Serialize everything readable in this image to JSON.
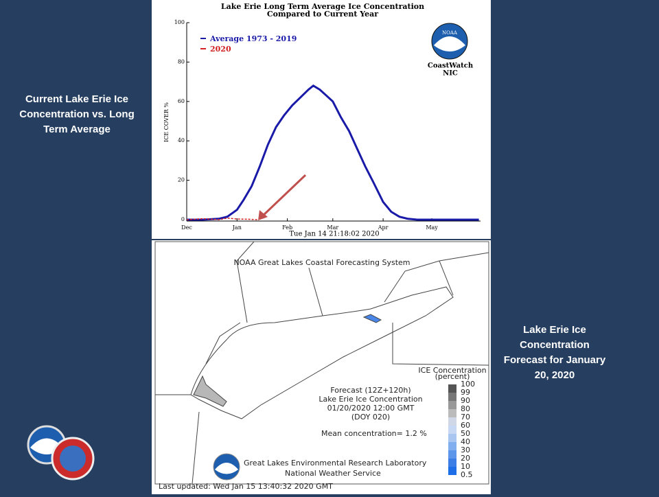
{
  "chart_data": {
    "type": "line",
    "title": "Lake Erie Long Term Average Ice Concentration",
    "subtitle": "Compared to Current Year",
    "ylabel": "ICE COVER %",
    "footer": "Tue Jan 14 21:18:02 2020",
    "logo_text": [
      "NOAA",
      "CoastWatch",
      "NIC"
    ],
    "xlim": [
      0,
      181
    ],
    "xticks": [
      {
        "value": 0,
        "label": "Dec"
      },
      {
        "value": 31,
        "label": "Jan"
      },
      {
        "value": 62,
        "label": "Feb"
      },
      {
        "value": 90,
        "label": "Mar"
      },
      {
        "value": 121,
        "label": "Apr"
      },
      {
        "value": 151,
        "label": "May"
      }
    ],
    "ylim": [
      0,
      100
    ],
    "yticks": [
      0,
      20,
      40,
      60,
      80,
      100
    ],
    "series": [
      {
        "name": "Average 1973 - 2019",
        "color": "#1a1aa8",
        "x": [
          0,
          10,
          20,
          25,
          31,
          35,
          40,
          45,
          50,
          55,
          60,
          65,
          70,
          75,
          78,
          82,
          86,
          90,
          95,
          100,
          105,
          110,
          115,
          121,
          126,
          131,
          136,
          142,
          160,
          180
        ],
        "values": [
          0,
          0,
          0.5,
          1.5,
          5,
          10,
          17,
          27,
          38,
          47,
          53,
          58,
          62,
          66,
          68,
          66,
          63,
          60,
          52,
          45,
          36,
          27,
          19,
          9,
          4,
          1.5,
          0.5,
          0,
          0,
          0
        ]
      },
      {
        "name": "2020",
        "color": "#d02020",
        "x": [
          0,
          10,
          20,
          25,
          31,
          38,
          44
        ],
        "values": [
          0,
          0.5,
          0,
          0.8,
          0.3,
          0.2,
          0
        ]
      }
    ]
  },
  "slide": {
    "left_caption": [
      "Current Lake Erie Ice",
      "Concentration vs. Long",
      "Term Average"
    ],
    "right_caption": [
      "Lake Erie Ice",
      "Concentration",
      "Forecast for January",
      "20, 2020"
    ]
  },
  "map": {
    "title": "NOAA Great Lakes Coastal Forecasting System",
    "forecast": [
      "Forecast (12Z+120h)",
      "Lake Erie Ice Concentration",
      "01/20/2020 12:00 GMT",
      "(DOY 020)"
    ],
    "mean": "Mean concentration= 1.2 %",
    "colorbar_title": [
      "ICE Concentration",
      "(percent)"
    ],
    "colorbar_labels": [
      "100",
      "99",
      "90",
      "80",
      "70",
      "60",
      "50",
      "40",
      "30",
      "20",
      "10",
      "0.5"
    ],
    "credit": [
      "Great Lakes Environmental Research Laboratory",
      "National Weather Service"
    ],
    "updated": "Last updated: Wed Jan 15 13:40:32 2020 GMT"
  }
}
